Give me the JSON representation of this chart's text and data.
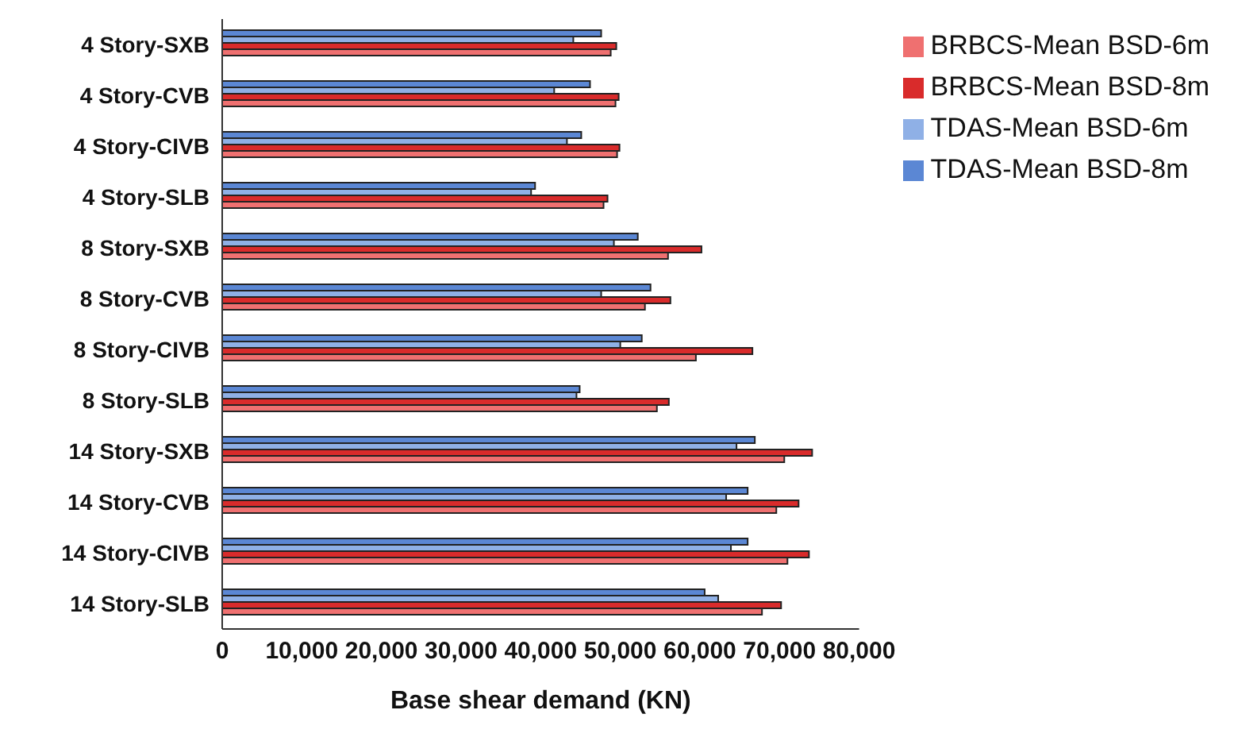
{
  "chart_data": {
    "type": "bar",
    "orientation": "horizontal",
    "xlabel": "Base shear demand (KN)",
    "categories": [
      "4 Story-SXB",
      "4 Story-CVB",
      "4 Story-CIVB",
      "4 Story-SLB",
      "8 Story-SXB",
      "8 Story-CVB",
      "8 Story-CIVB",
      "8 Story-SLB",
      "14 Story-SXB",
      "14 Story-CVB",
      "14 Story-CIVB",
      "14 Story-SLB"
    ],
    "series": [
      {
        "name": "TDAS-Mean BSD-8m",
        "color": "#5b87d4",
        "values": [
          47600,
          46200,
          45100,
          39300,
          52200,
          53800,
          52700,
          44900,
          66900,
          66000,
          66000,
          60600
        ]
      },
      {
        "name": "TDAS-Mean BSD-6m",
        "color": "#8fb0e6",
        "values": [
          44100,
          41700,
          43300,
          38800,
          49200,
          47600,
          50000,
          44500,
          64600,
          63300,
          63900,
          62300
        ]
      },
      {
        "name": "BRBCS-Mean BSD-8m",
        "color": "#d92b2b",
        "values": [
          49500,
          49800,
          49900,
          48400,
          60200,
          56300,
          66600,
          56100,
          74100,
          72400,
          73700,
          70200
        ]
      },
      {
        "name": "BRBCS-Mean BSD-6m",
        "color": "#ef7070",
        "values": [
          48800,
          49400,
          49600,
          47900,
          56000,
          53100,
          59500,
          54600,
          70600,
          69600,
          71000,
          67800
        ]
      }
    ],
    "xlim": [
      0,
      80000
    ],
    "xticks": [
      {
        "value": 0,
        "label": "0"
      },
      {
        "value": 10000,
        "label": "10,000"
      },
      {
        "value": 20000,
        "label": "20,000"
      },
      {
        "value": 30000,
        "label": "30,000"
      },
      {
        "value": 40000,
        "label": "40,000"
      },
      {
        "value": 50000,
        "label": "50,000"
      },
      {
        "value": 60000,
        "label": "60,000"
      },
      {
        "value": 70000,
        "label": "70,000"
      },
      {
        "value": 80000,
        "label": "80,000"
      }
    ],
    "grid": false,
    "legend": "top right"
  }
}
